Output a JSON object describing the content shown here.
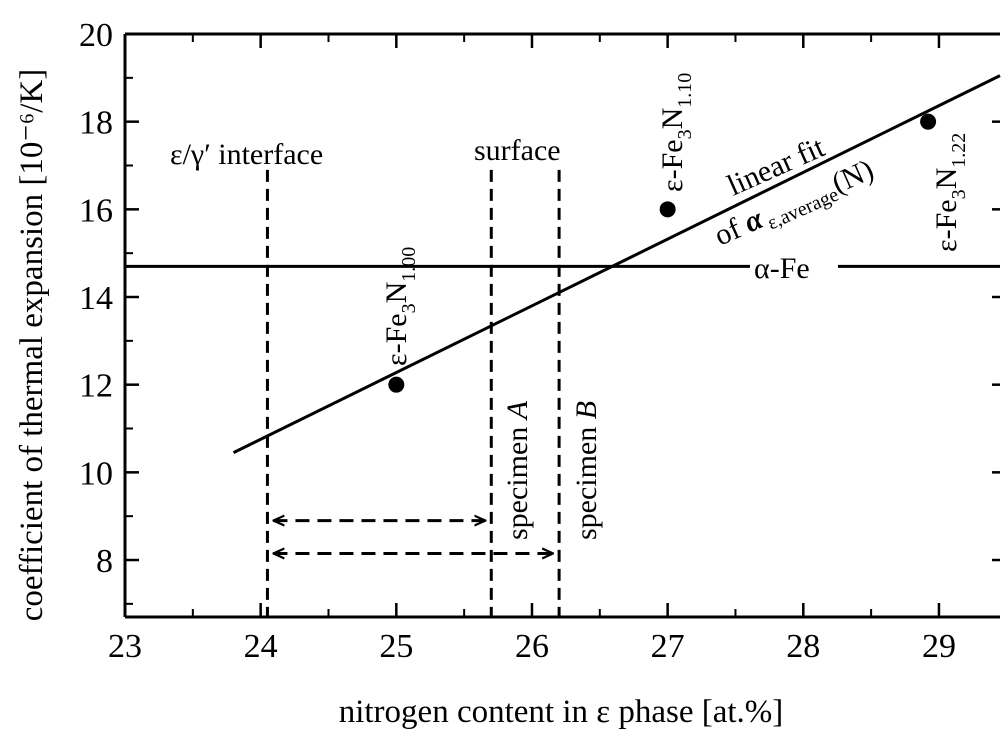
{
  "chart_data": {
    "type": "scatter",
    "title": "",
    "xlabel": "nitrogen content in ε phase [at.%]",
    "ylabel": "coefficient of thermal expansion [10⁻⁶/K]",
    "xlim": [
      23,
      29.45
    ],
    "ylim": [
      6.7,
      20
    ],
    "x_ticks": [
      23,
      24,
      25,
      26,
      27,
      28,
      29
    ],
    "y_ticks": [
      8,
      10,
      12,
      14,
      16,
      18,
      20
    ],
    "x_minor_step": 0.5,
    "y_minor_step": 1,
    "grid": false,
    "series": [
      {
        "kind": "points",
        "points": [
          {
            "x": 25.0,
            "y": 12.0,
            "label_main": "ε-Fe",
            "label_sub1": "3",
            "label_mid": "N",
            "label_sub2": "1.00"
          },
          {
            "x": 27.0,
            "y": 16.0,
            "label_main": "ε-Fe",
            "label_sub1": "3",
            "label_mid": "N",
            "label_sub2": "1.10"
          },
          {
            "x": 28.92,
            "y": 18.0,
            "label_main": "ε-Fe",
            "label_sub1": "3",
            "label_mid": "N",
            "label_sub2": "1.22"
          }
        ]
      },
      {
        "kind": "fit-line",
        "x": [
          23.8,
          29.45
        ],
        "y": [
          10.45,
          19.05
        ],
        "label_line1": "linear fit",
        "label_of": "of ",
        "label_alpha": "α",
        "label_sub": "ε,average",
        "label_tail": "(N)"
      },
      {
        "kind": "reference-line",
        "y": 14.7,
        "label": "α-Fe"
      }
    ],
    "vertical_lines": [
      {
        "x": 24.05,
        "y_top": 16.9,
        "label": "ε/γ′ interface"
      },
      {
        "x": 25.7,
        "y_top": 16.9,
        "label": "specimen A",
        "label_prefix": "specimen ",
        "label_italic": "A"
      },
      {
        "x": 26.2,
        "y_top": 16.9,
        "label": "specimen B",
        "label_prefix": "specimen ",
        "label_italic": "B"
      }
    ],
    "surface_label": "surface",
    "arrows": [
      {
        "x1": 24.05,
        "x2": 25.7,
        "y": 8.9
      },
      {
        "x1": 24.05,
        "x2": 26.2,
        "y": 8.15
      }
    ]
  }
}
